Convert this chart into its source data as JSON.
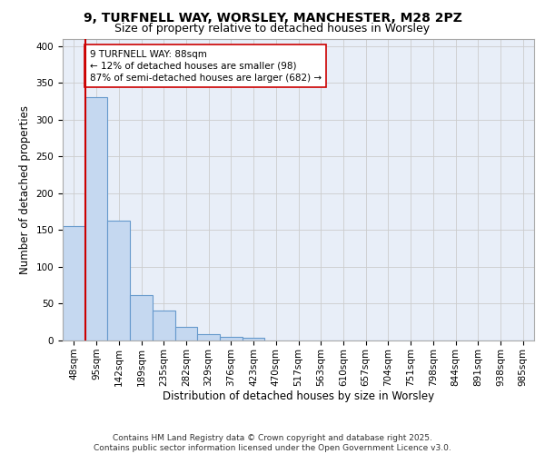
{
  "title_line1": "9, TURFNELL WAY, WORSLEY, MANCHESTER, M28 2PZ",
  "title_line2": "Size of property relative to detached houses in Worsley",
  "xlabel": "Distribution of detached houses by size in Worsley",
  "ylabel": "Number of detached properties",
  "categories": [
    "48sqm",
    "95sqm",
    "142sqm",
    "189sqm",
    "235sqm",
    "282sqm",
    "329sqm",
    "376sqm",
    "423sqm",
    "470sqm",
    "517sqm",
    "563sqm",
    "610sqm",
    "657sqm",
    "704sqm",
    "751sqm",
    "798sqm",
    "844sqm",
    "891sqm",
    "938sqm",
    "985sqm"
  ],
  "values": [
    155,
    330,
    163,
    62,
    41,
    19,
    9,
    5,
    4,
    0,
    0,
    0,
    0,
    0,
    0,
    0,
    0,
    0,
    0,
    0,
    0
  ],
  "bar_color": "#c5d8f0",
  "bar_edge_color": "#6699cc",
  "grid_color": "#cccccc",
  "background_color": "#e8eef8",
  "vline_color": "#cc0000",
  "vline_x": 0.5,
  "annotation_text": "9 TURFNELL WAY: 88sqm\n← 12% of detached houses are smaller (98)\n87% of semi-detached houses are larger (682) →",
  "annotation_box_facecolor": "#ffffff",
  "annotation_box_edgecolor": "#cc0000",
  "ylim": [
    0,
    410
  ],
  "yticks": [
    0,
    50,
    100,
    150,
    200,
    250,
    300,
    350,
    400
  ],
  "footer_text": "Contains HM Land Registry data © Crown copyright and database right 2025.\nContains public sector information licensed under the Open Government Licence v3.0.",
  "title_fontsize": 10,
  "subtitle_fontsize": 9,
  "axis_label_fontsize": 8.5,
  "tick_fontsize": 7.5,
  "annotation_fontsize": 7.5,
  "footer_fontsize": 6.5
}
